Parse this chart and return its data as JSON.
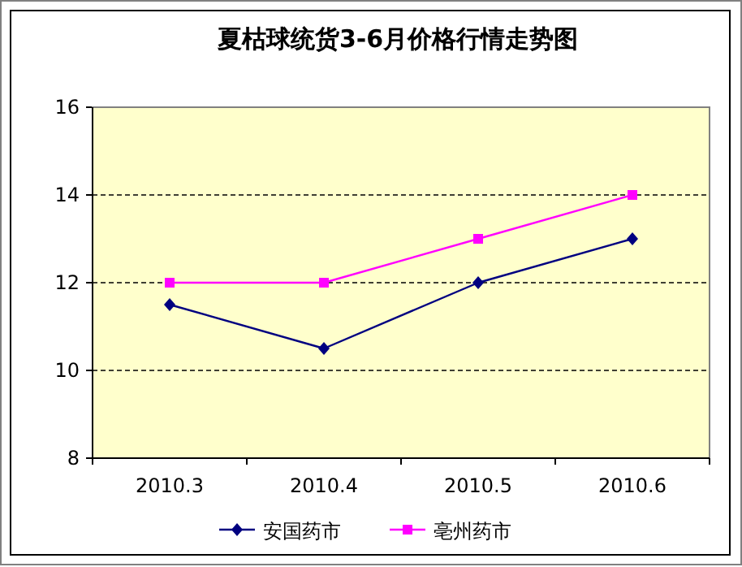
{
  "chart_data": {
    "type": "line",
    "title": "夏枯球统货3-6月价格行情走势图",
    "categories": [
      "2010.3",
      "2010.4",
      "2010.5",
      "2010.6"
    ],
    "series": [
      {
        "name": "安国药市",
        "color": "#000080",
        "marker": "diamond",
        "values": [
          11.5,
          10.5,
          12,
          13
        ]
      },
      {
        "name": "亳州药市",
        "color": "#ff00ff",
        "marker": "square",
        "values": [
          12,
          12,
          13,
          14
        ]
      }
    ],
    "ylim": [
      8,
      16
    ],
    "yticks": [
      8,
      10,
      12,
      14,
      16
    ],
    "grid": "y",
    "legend": "bottom",
    "line_style": "solid"
  }
}
